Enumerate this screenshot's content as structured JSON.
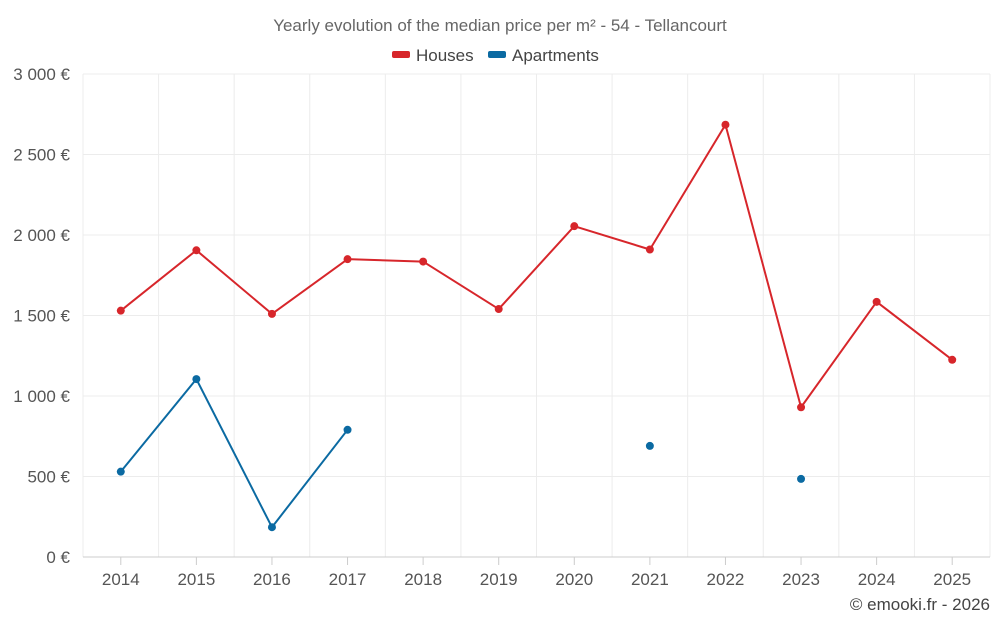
{
  "chart_data": {
    "type": "line",
    "title": "Yearly evolution of the median price per m² - 54 - Tellancourt",
    "xlabel": "",
    "ylabel": "",
    "categories": [
      "2014",
      "2015",
      "2016",
      "2017",
      "2018",
      "2019",
      "2020",
      "2021",
      "2022",
      "2023",
      "2024",
      "2025"
    ],
    "ylim": [
      0,
      3000
    ],
    "yticks": [
      0,
      500,
      1000,
      1500,
      2000,
      2500,
      3000
    ],
    "ytick_labels": [
      "0 €",
      "500 €",
      "1 000 €",
      "1 500 €",
      "2 000 €",
      "2 500 €",
      "3 000 €"
    ],
    "grid": true,
    "legend_position": "top-center",
    "series": [
      {
        "name": "Houses",
        "color": "#d7262b",
        "values": [
          1530,
          1905,
          1510,
          1850,
          1835,
          1540,
          2055,
          1910,
          2685,
          930,
          1585,
          1225
        ]
      },
      {
        "name": "Apartments",
        "color": "#0b6aa2",
        "values": [
          530,
          1105,
          185,
          790,
          null,
          null,
          null,
          690,
          null,
          485,
          null,
          null
        ]
      }
    ]
  },
  "credit": "© emooki.fr - 2026"
}
